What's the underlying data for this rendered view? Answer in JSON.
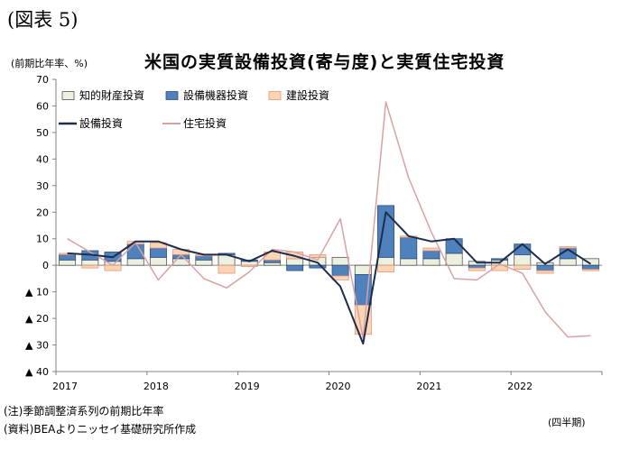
{
  "header": {
    "figure_label": "(図表 5)",
    "unit": "(前期比年率、%)",
    "frequency": "(四半期)"
  },
  "notes": [
    "(注)季節調整済系列の前期比年率",
    "(資料)BEAよりニッセイ基礎研究所作成"
  ],
  "chart_data": {
    "type": "bar",
    "title": "米国の実質設備投資(寄与度)と実質住宅投資",
    "quarters": [
      "2017Q1",
      "2017Q2",
      "2017Q3",
      "2017Q4",
      "2018Q1",
      "2018Q2",
      "2018Q3",
      "2018Q4",
      "2019Q1",
      "2019Q2",
      "2019Q3",
      "2019Q4",
      "2020Q1",
      "2020Q2",
      "2020Q3",
      "2020Q4",
      "2021Q1",
      "2021Q2",
      "2021Q3",
      "2021Q4",
      "2022Q1",
      "2022Q2",
      "2022Q3",
      "2022Q4"
    ],
    "year_labels": [
      "2017",
      "2018",
      "2019",
      "2020",
      "2021",
      "2022"
    ],
    "ylim": [
      -40,
      70
    ],
    "yticks": [
      {
        "value": 70,
        "label": "70"
      },
      {
        "value": 60,
        "label": "60"
      },
      {
        "value": 50,
        "label": "50"
      },
      {
        "value": 40,
        "label": "40"
      },
      {
        "value": 30,
        "label": "30"
      },
      {
        "value": 20,
        "label": "20"
      },
      {
        "value": 10,
        "label": "10"
      },
      {
        "value": 0,
        "label": "0"
      },
      {
        "value": -10,
        "label": "▲ 10"
      },
      {
        "value": -20,
        "label": "▲ 20"
      },
      {
        "value": -30,
        "label": "▲ 30"
      },
      {
        "value": -40,
        "label": "▲ 40"
      }
    ],
    "stacked_series": [
      {
        "name": "知的財産投資",
        "color": "#ebf1de",
        "stroke": "#555555",
        "values": [
          2.0,
          2.0,
          1.5,
          2.5,
          3.0,
          2.5,
          2.0,
          4.0,
          1.5,
          1.0,
          2.5,
          3.0,
          3.0,
          -3.5,
          3.0,
          2.5,
          2.5,
          4.5,
          1.5,
          2.0,
          4.0,
          1.0,
          2.5,
          2.5
        ]
      },
      {
        "name": "設備機器投資",
        "color": "#4f81bd",
        "stroke": "#2f4f7f",
        "values": [
          2.0,
          3.5,
          3.5,
          5.5,
          3.5,
          1.5,
          1.5,
          0.5,
          0.5,
          1.0,
          -2.0,
          -1.0,
          -4.0,
          -11.5,
          19.5,
          8.0,
          3.0,
          5.5,
          -1.0,
          0.5,
          4.0,
          -2.0,
          4.0,
          -1.5
        ]
      },
      {
        "name": "建設投資",
        "color": "#fcd5b4",
        "stroke": "#e2977a",
        "values": [
          0.5,
          -1.0,
          -2.0,
          1.0,
          2.0,
          2.0,
          0.5,
          -3.0,
          -0.5,
          3.0,
          2.5,
          1.0,
          -1.5,
          -11.0,
          -2.5,
          0.5,
          1.0,
          0.0,
          -1.0,
          -2.0,
          -1.5,
          -1.0,
          0.5,
          -0.5
        ]
      }
    ],
    "line_series": [
      {
        "name": "設備投資",
        "color": "#1f2d4a",
        "width": 2,
        "values": [
          4.5,
          4.0,
          3.0,
          9.0,
          9.0,
          6.0,
          4.0,
          4.0,
          1.5,
          5.5,
          3.5,
          1.0,
          -8.0,
          -29.5,
          20.0,
          11.0,
          9.0,
          10.0,
          1.0,
          1.0,
          8.0,
          0.5,
          6.0,
          0.5
        ]
      },
      {
        "name": "住宅投資",
        "color": "#d9a1a2",
        "width": 1.5,
        "values": [
          10.0,
          5.0,
          0.0,
          8.5,
          -5.5,
          4.0,
          -5.0,
          -8.5,
          -2.5,
          6.0,
          5.0,
          2.0,
          17.5,
          -27.5,
          61.5,
          33.0,
          12.5,
          -5.0,
          -5.5,
          0.5,
          -3.0,
          -17.5,
          -27.0,
          -26.5
        ]
      }
    ],
    "legend_position": "top-left",
    "grid": false
  }
}
